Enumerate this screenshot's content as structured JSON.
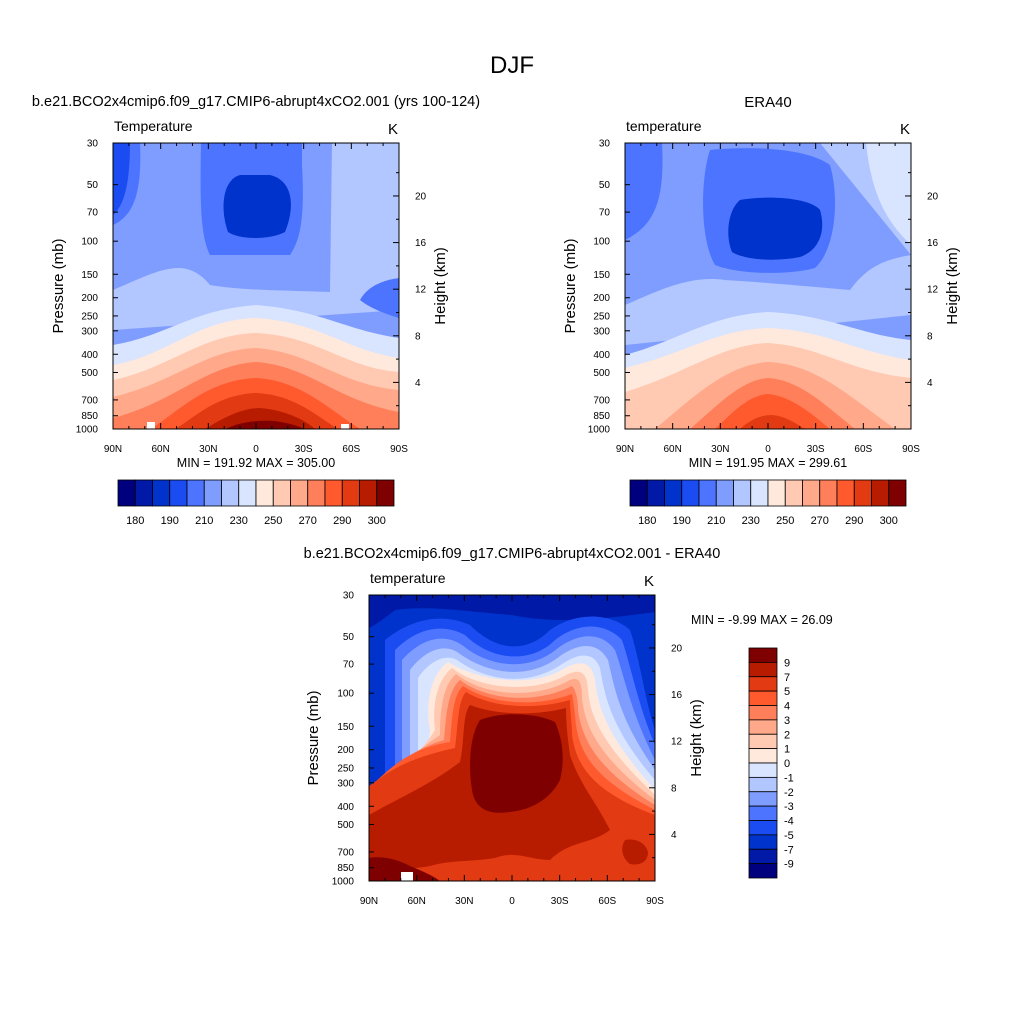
{
  "page_title": "DJF",
  "colors": {
    "temp_scale": [
      "#00007f",
      "#0019a6",
      "#0033cc",
      "#1a4cf2",
      "#4d74ff",
      "#7f9dff",
      "#b2c6ff",
      "#d9e4ff",
      "#ffe9dd",
      "#ffc9b2",
      "#ffa88a",
      "#ff7f5a",
      "#ff5a2d",
      "#e23a12",
      "#b81c00",
      "#7f0000"
    ],
    "diff_scale": [
      "#00007f",
      "#0019a6",
      "#0033cc",
      "#1a4cf2",
      "#4d74ff",
      "#7f9dff",
      "#b2c6ff",
      "#d9e4ff",
      "#ffe9dd",
      "#ffc9b2",
      "#ffa88a",
      "#ff7f5a",
      "#ff5a2d",
      "#e23a12",
      "#b81c00",
      "#7f0000"
    ]
  },
  "chart_data": [
    {
      "id": "model",
      "type": "heatmap",
      "title": "b.e21.BCO2x4cmip6.f09_g17.CMIP6-abrupt4xCO2.001 (yrs 100-124)",
      "left_string": "Temperature",
      "right_string": "K",
      "ylabel": "Pressure (mb)",
      "ylabel_right": "Height (km)",
      "x_ticks": [
        "90N",
        "60N",
        "30N",
        "0",
        "30S",
        "60S",
        "90S"
      ],
      "y_ticks": [
        "30",
        "50",
        "70",
        "100",
        "150",
        "200",
        "250",
        "300",
        "400",
        "500",
        "700",
        "850",
        "1000"
      ],
      "height_ticks": [
        "20",
        "16",
        "12",
        "8",
        "4"
      ],
      "min_max": "MIN = 191.92  MAX = 305.00",
      "levels": [
        175,
        180,
        185,
        190,
        200,
        210,
        220,
        230,
        240,
        250,
        260,
        270,
        280,
        290,
        295,
        300
      ],
      "colorbar_labels": [
        "180",
        "190",
        "210",
        "230",
        "250",
        "270",
        "290",
        "300"
      ]
    },
    {
      "id": "obs",
      "type": "heatmap",
      "title": "ERA40",
      "left_string": "temperature",
      "right_string": "K",
      "ylabel": "Pressure (mb)",
      "ylabel_right": "Height (km)",
      "x_ticks": [
        "90N",
        "60N",
        "30N",
        "0",
        "30S",
        "60S",
        "90S"
      ],
      "y_ticks": [
        "30",
        "50",
        "70",
        "100",
        "150",
        "200",
        "250",
        "300",
        "400",
        "500",
        "700",
        "850",
        "1000"
      ],
      "height_ticks": [
        "20",
        "16",
        "12",
        "8",
        "4"
      ],
      "min_max": "MIN = 191.95  MAX = 299.61",
      "levels": [
        175,
        180,
        185,
        190,
        200,
        210,
        220,
        230,
        240,
        250,
        260,
        270,
        280,
        290,
        295,
        300
      ],
      "colorbar_labels": [
        "180",
        "190",
        "210",
        "230",
        "250",
        "270",
        "290",
        "300"
      ]
    },
    {
      "id": "diff",
      "type": "heatmap",
      "title": "b.e21.BCO2x4cmip6.f09_g17.CMIP6-abrupt4xCO2.001 - ERA40",
      "left_string": "temperature",
      "right_string": "K",
      "ylabel": "Pressure (mb)",
      "ylabel_right": "Height (km)",
      "x_ticks": [
        "90N",
        "60N",
        "30N",
        "0",
        "30S",
        "60S",
        "90S"
      ],
      "y_ticks": [
        "30",
        "50",
        "70",
        "100",
        "150",
        "200",
        "250",
        "300",
        "400",
        "500",
        "700",
        "850",
        "1000"
      ],
      "height_ticks": [
        "20",
        "16",
        "12",
        "8",
        "4"
      ],
      "min_max": "MIN =  -9.99  MAX =  26.09",
      "levels": [
        -9,
        -7,
        -5,
        -4,
        -3,
        -2,
        -1,
        0,
        1,
        2,
        3,
        4,
        5,
        7,
        9
      ],
      "colorbar_labels": [
        "9",
        "7",
        "5",
        "4",
        "3",
        "2",
        "1",
        "0",
        "-1",
        "-2",
        "-3",
        "-4",
        "-5",
        "-7",
        "-9"
      ]
    }
  ]
}
